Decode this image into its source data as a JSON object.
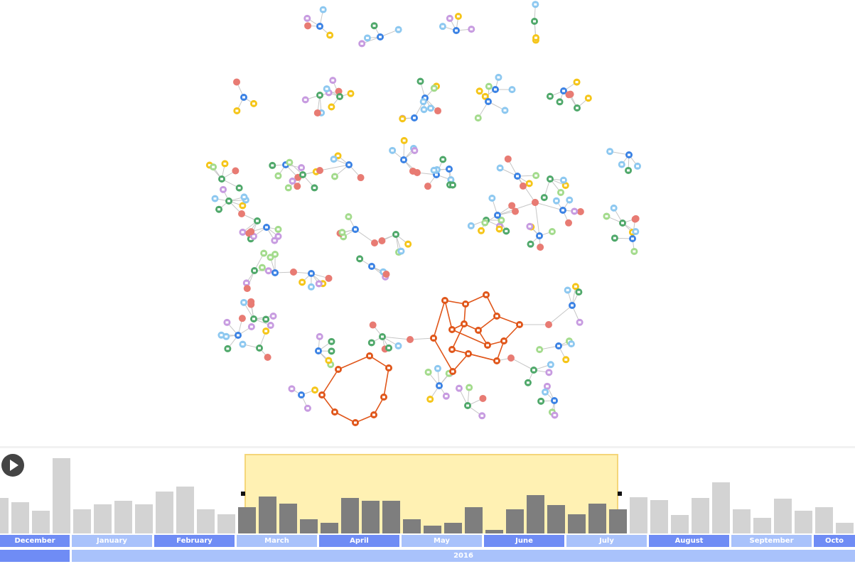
{
  "colors": {
    "person": "#3b82e4",
    "phone": "#8dc8f0",
    "email": "#c79be0",
    "address": "#f5c518",
    "account": "#4fa86a",
    "document": "#a3db8c",
    "transaction": "#e87b73",
    "highlight": "#e0561a",
    "edge": "#c6c6c6",
    "bar_in_range": "#7e7e7e",
    "bar_out_range": "#d3d3d3",
    "month_dark": "#6f8cf5",
    "month_light": "#a9c2fb"
  },
  "icons": {
    "person": "person-icon",
    "phone": "phone-icon",
    "email": "email-icon",
    "address": "address-icon",
    "account": "account-icon",
    "document": "document-icon",
    "transaction": "transaction-icon"
  },
  "timeline": {
    "play_label": "Play",
    "months": [
      "December",
      "January",
      "February",
      "March",
      "April",
      "May",
      "June",
      "July",
      "August",
      "September",
      "Octo"
    ],
    "year": "2016",
    "selected_range": [
      "March",
      "July"
    ],
    "activity_counts": [
      50,
      44,
      32,
      106,
      34,
      41,
      46,
      41,
      59,
      66,
      34,
      27,
      37,
      52,
      42,
      20,
      15,
      50,
      46,
      46,
      20,
      11,
      15,
      37,
      5,
      34,
      54,
      40,
      27,
      42,
      34,
      51,
      47,
      26,
      50,
      72,
      34,
      22,
      49,
      32,
      37,
      15
    ]
  }
}
